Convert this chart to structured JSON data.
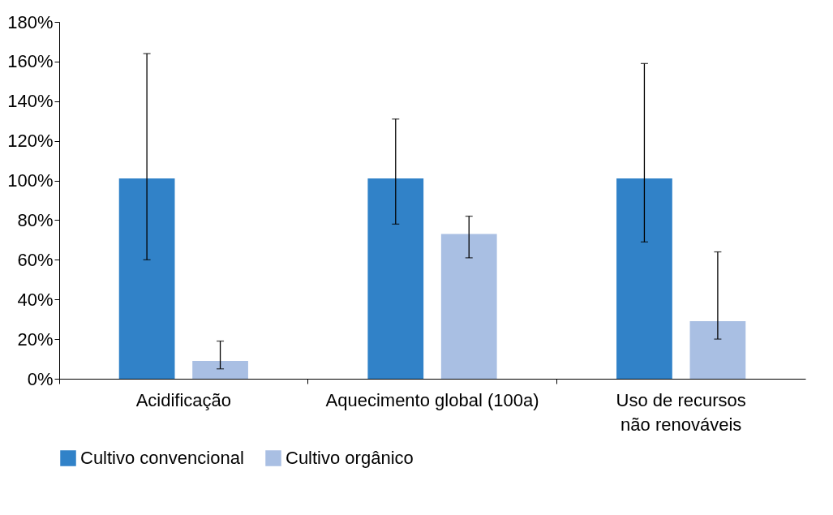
{
  "chart_data": {
    "type": "bar",
    "categories": [
      "Acidificação",
      "Aquecimento global (100a)",
      "Uso de recursos não renováveis"
    ],
    "series": [
      {
        "name": "Cultivo convencional",
        "color": "#3182c8",
        "values": [
          101,
          101,
          101
        ],
        "errors": [
          [
            60,
            164
          ],
          [
            78,
            131
          ],
          [
            69,
            159
          ]
        ]
      },
      {
        "name": "Cultivo orgânico",
        "color": "#a9bfe3",
        "values": [
          9,
          73,
          29
        ],
        "errors": [
          [
            5,
            19
          ],
          [
            61,
            82
          ],
          [
            20,
            64
          ]
        ]
      }
    ],
    "ylim": [
      0,
      180
    ],
    "yticks": [
      {
        "value": 0,
        "label": "0%"
      },
      {
        "value": 20,
        "label": "20%"
      },
      {
        "value": 40,
        "label": "40%"
      },
      {
        "value": 60,
        "label": "60%"
      },
      {
        "value": 80,
        "label": "80%"
      },
      {
        "value": 100,
        "label": "100%"
      },
      {
        "value": 120,
        "label": "120%"
      },
      {
        "value": 140,
        "label": "140%"
      },
      {
        "value": 160,
        "label": "160%"
      },
      {
        "value": 180,
        "label": "180%"
      }
    ],
    "grid": false,
    "legend": "bottom"
  }
}
